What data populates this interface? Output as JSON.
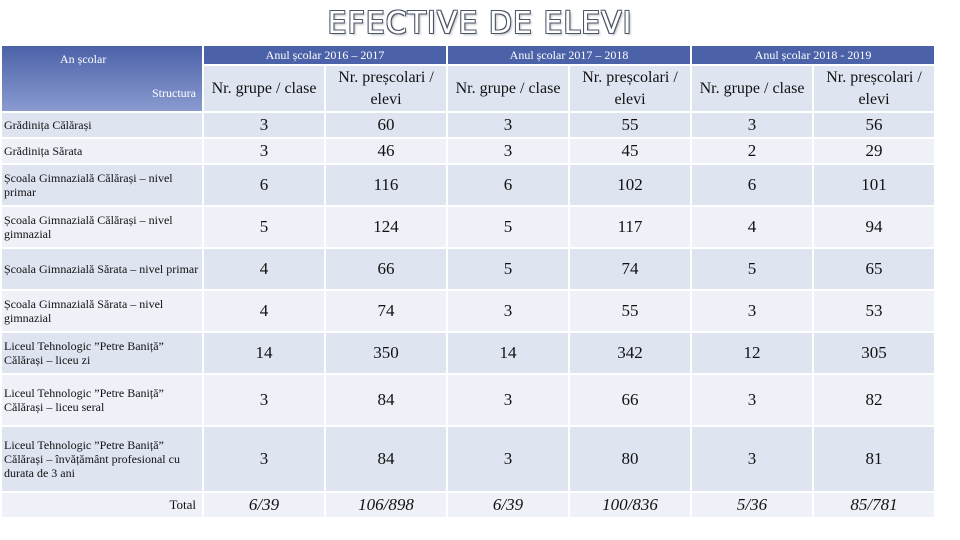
{
  "title": "EFECTIVE DE ELEVI",
  "header": {
    "an_scolar": "An școlar",
    "structura": "Structura",
    "years": [
      "Anul școlar 2016 – 2017",
      "Anul școlar 2017 – 2018",
      "Anul școlar 2018 - 2019"
    ],
    "sub_grupe": "Nr. grupe / clase",
    "sub_prescolari": "Nr. preșcolari / elevi"
  },
  "rows": [
    {
      "label": "Grădinița Călărași",
      "v": [
        "3",
        "60",
        "3",
        "55",
        "3",
        "56"
      ]
    },
    {
      "label": "Grădinița Sărata",
      "v": [
        "3",
        "46",
        "3",
        "45",
        "2",
        "29"
      ]
    },
    {
      "label": "Școala Gimnazială Călărași – nivel primar",
      "v": [
        "6",
        "116",
        "6",
        "102",
        "6",
        "101"
      ]
    },
    {
      "label": "Școala Gimnazială Călărași – nivel gimnazial",
      "v": [
        "5",
        "124",
        "5",
        "117",
        "4",
        "94"
      ]
    },
    {
      "label": "Școala Gimnazială Sărata – nivel primar",
      "v": [
        "4",
        "66",
        "5",
        "74",
        "5",
        "65"
      ]
    },
    {
      "label": "Școala Gimnazială Sărata – nivel gimnazial",
      "v": [
        "4",
        "74",
        "3",
        "55",
        "3",
        "53"
      ]
    },
    {
      "label": "Liceul Tehnologic ”Petre Baniță” Călărași – liceu zi",
      "v": [
        "14",
        "350",
        "14",
        "342",
        "12",
        "305"
      ]
    },
    {
      "label": "Liceul Tehnologic ”Petre Baniță” Călărași – liceu seral",
      "v": [
        "3",
        "84",
        "3",
        "66",
        "3",
        "82"
      ]
    },
    {
      "label": "Liceul Tehnologic ”Petre Baniță” Călărași – învățământ profesional cu durata de 3 ani",
      "v": [
        "3",
        "84",
        "3",
        "80",
        "3",
        "81"
      ]
    }
  ],
  "total": {
    "label": "Total",
    "v": [
      "6/39",
      "106/898",
      "6/39",
      "100/836",
      "5/36",
      "85/781"
    ]
  }
}
